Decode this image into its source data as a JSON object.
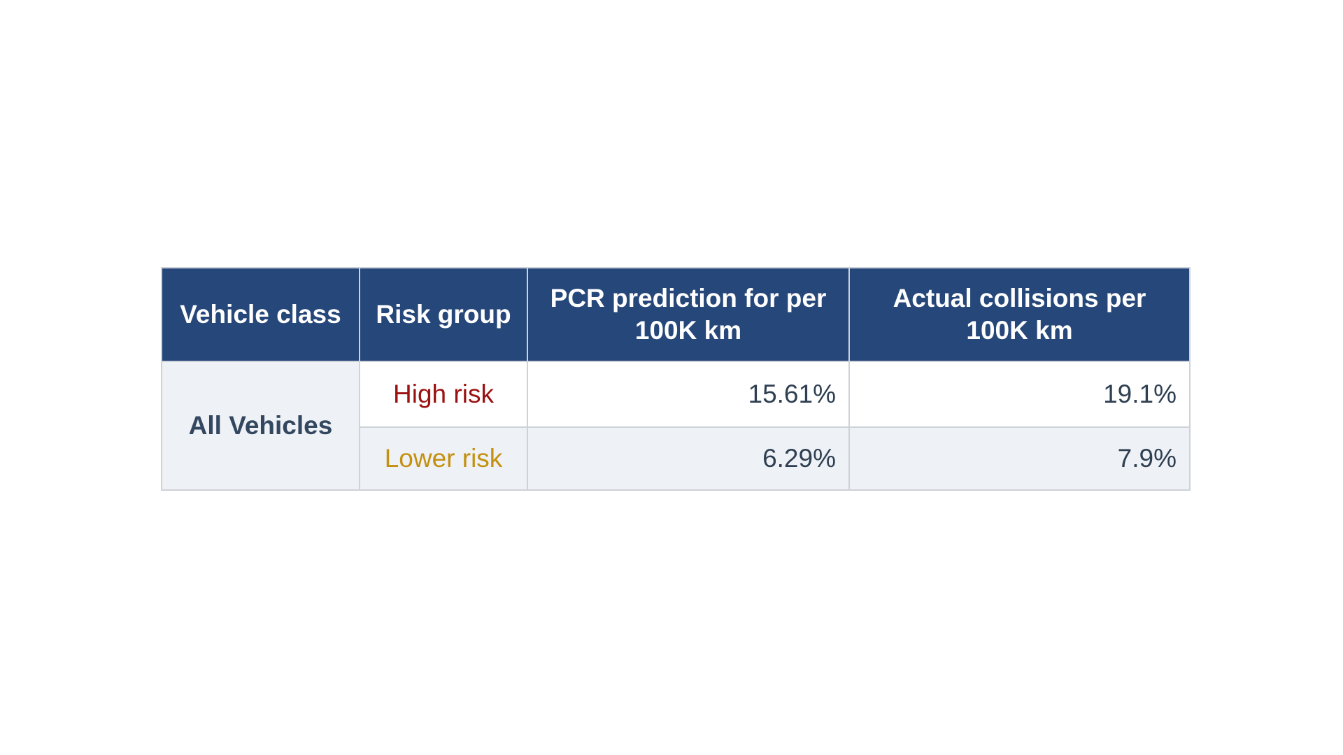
{
  "table": {
    "headers": [
      "Vehicle class",
      "Risk group",
      "PCR prediction for per 100K km",
      "Actual collisions per 100K km"
    ],
    "vehicle_class": "All Vehicles",
    "rows": [
      {
        "risk_group": "High risk",
        "risk_color": "#9b1111",
        "pcr_prediction": "15.61%",
        "actual_collisions": "19.1%"
      },
      {
        "risk_group": "Lower risk",
        "risk_color": "#c4900f",
        "pcr_prediction": "6.29%",
        "actual_collisions": "7.9%"
      }
    ],
    "colors": {
      "header_bg": "#264779",
      "header_text": "#ffffff",
      "alt_row_bg": "#eef1f5",
      "border": "#cdd2d9"
    }
  }
}
